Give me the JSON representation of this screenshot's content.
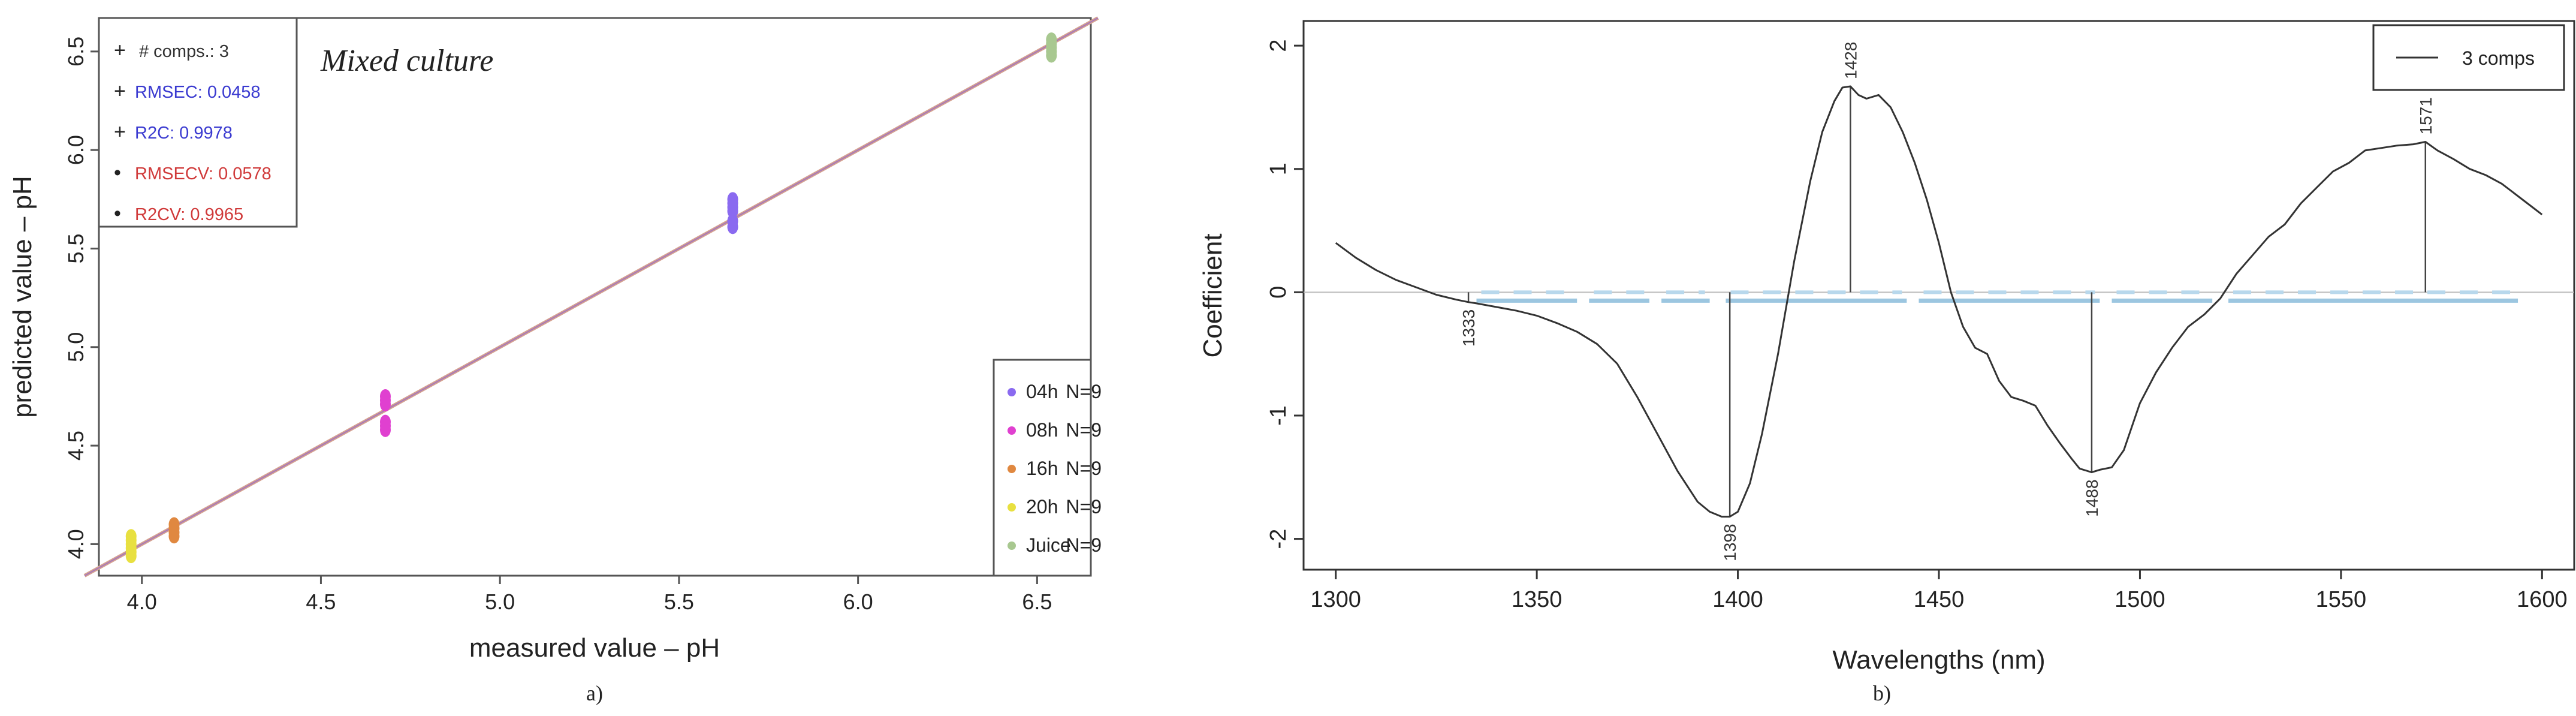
{
  "chart_data": [
    {
      "type": "scatter",
      "panel_label": "a)",
      "xlabel": "measured value – pH",
      "ylabel": "predicted value – pH",
      "xlim": [
        3.88,
        6.65
      ],
      "ylim": [
        3.84,
        6.67
      ],
      "xticks": [
        4.0,
        4.5,
        5.0,
        5.5,
        6.0,
        6.5
      ],
      "yticks": [
        4.0,
        4.5,
        5.0,
        5.5,
        6.0,
        6.5
      ],
      "xticklabels": [
        "4.0",
        "4.5",
        "5.0",
        "5.5",
        "6.0",
        "6.5"
      ],
      "yticklabels": [
        "4.0",
        "4.5",
        "5.0",
        "5.5",
        "6.0",
        "6.5"
      ],
      "annotation": "Mixed culture",
      "fit_line": {
        "x": [
          3.84,
          6.67
        ],
        "y": [
          3.84,
          6.67
        ],
        "colors": [
          "#d4a090",
          "#9b6fc4"
        ]
      },
      "stats_box": [
        {
          "marker": "+",
          "text": "# comps.: 3",
          "color": "#333333"
        },
        {
          "marker": "+",
          "text": "RMSEC: 0.0458",
          "color": "#3a3ad0"
        },
        {
          "marker": "+",
          "text": "R2C: 0.9978",
          "color": "#3a3ad0"
        },
        {
          "marker": "•",
          "text": "RMSECV: 0.0578",
          "color": "#d03a3a"
        },
        {
          "marker": "•",
          "text": "R2CV: 0.9965",
          "color": "#d03a3a"
        }
      ],
      "series": [
        {
          "name": "04h",
          "n_label": "N=9",
          "color": "#8a6af0",
          "x": [
            5.65,
            5.65,
            5.65,
            5.65,
            5.65,
            5.65
          ],
          "y": [
            5.75,
            5.73,
            5.71,
            5.69,
            5.64,
            5.61
          ]
        },
        {
          "name": "08h",
          "n_label": "N=9",
          "color": "#e040d0",
          "x": [
            4.68,
            4.68,
            4.68,
            4.68,
            4.68,
            4.68
          ],
          "y": [
            4.75,
            4.73,
            4.71,
            4.62,
            4.6,
            4.58
          ]
        },
        {
          "name": "16h",
          "n_label": "N=9",
          "color": "#e08840",
          "x": [
            4.09,
            4.09,
            4.09,
            4.09
          ],
          "y": [
            4.1,
            4.08,
            4.06,
            4.04
          ]
        },
        {
          "name": "20h",
          "n_label": "N=9",
          "color": "#e8e040",
          "x": [
            3.97,
            3.97,
            3.97,
            3.97,
            3.97,
            3.97
          ],
          "y": [
            4.04,
            4.02,
            4.0,
            3.98,
            3.96,
            3.94
          ]
        },
        {
          "name": "Juice",
          "n_label": "N=9",
          "color": "#a8c890",
          "x": [
            6.54,
            6.54,
            6.54,
            6.54,
            6.54
          ],
          "y": [
            6.56,
            6.54,
            6.52,
            6.5,
            6.48
          ]
        }
      ]
    },
    {
      "type": "line",
      "panel_label": "b)",
      "xlabel": "Wavelengths (nm)",
      "ylabel": "Coefficient",
      "xlim": [
        1292,
        1608
      ],
      "ylim": [
        -2.25,
        2.2
      ],
      "xticks": [
        1300,
        1350,
        1400,
        1450,
        1500,
        1550,
        1600
      ],
      "yticks": [
        -2,
        -1,
        0,
        1,
        2
      ],
      "xticklabels": [
        "1300",
        "1350",
        "1400",
        "1450",
        "1500",
        "1550",
        "1600"
      ],
      "yticklabels": [
        "-2",
        "-1",
        "0",
        "1",
        "2"
      ],
      "legend": {
        "label": "3 comps",
        "position": "top-right"
      },
      "series": [
        {
          "name": "3 comps",
          "color": "#333333",
          "x": [
            1300,
            1305,
            1310,
            1315,
            1320,
            1325,
            1330,
            1333,
            1335,
            1340,
            1345,
            1350,
            1355,
            1360,
            1365,
            1370,
            1375,
            1380,
            1385,
            1390,
            1393,
            1396,
            1398,
            1400,
            1403,
            1406,
            1410,
            1414,
            1418,
            1421,
            1424,
            1426,
            1428,
            1430,
            1432,
            1435,
            1438,
            1441,
            1444,
            1447,
            1450,
            1453,
            1456,
            1459,
            1462,
            1465,
            1468,
            1471,
            1474,
            1477,
            1480,
            1483,
            1485,
            1487,
            1488,
            1490,
            1493,
            1496,
            1500,
            1504,
            1508,
            1512,
            1516,
            1520,
            1524,
            1528,
            1532,
            1536,
            1540,
            1544,
            1548,
            1552,
            1556,
            1560,
            1564,
            1568,
            1571,
            1574,
            1578,
            1582,
            1586,
            1590,
            1594,
            1598,
            1600
          ],
          "y": [
            0.4,
            0.28,
            0.18,
            0.1,
            0.04,
            -0.02,
            -0.06,
            -0.08,
            -0.09,
            -0.12,
            -0.15,
            -0.19,
            -0.25,
            -0.32,
            -0.42,
            -0.58,
            -0.85,
            -1.15,
            -1.45,
            -1.7,
            -1.78,
            -1.82,
            -1.82,
            -1.78,
            -1.55,
            -1.15,
            -0.5,
            0.25,
            0.9,
            1.3,
            1.55,
            1.66,
            1.67,
            1.6,
            1.57,
            1.6,
            1.5,
            1.3,
            1.05,
            0.75,
            0.4,
            0.0,
            -0.28,
            -0.45,
            -0.5,
            -0.72,
            -0.85,
            -0.88,
            -0.92,
            -1.08,
            -1.22,
            -1.35,
            -1.43,
            -1.45,
            -1.46,
            -1.44,
            -1.42,
            -1.28,
            -0.9,
            -0.65,
            -0.45,
            -0.28,
            -0.18,
            -0.05,
            0.15,
            0.3,
            0.45,
            0.55,
            0.72,
            0.85,
            0.98,
            1.05,
            1.15,
            1.17,
            1.19,
            1.2,
            1.22,
            1.15,
            1.08,
            1.0,
            0.95,
            0.88,
            0.78,
            0.68,
            0.63
          ]
        }
      ],
      "peak_labels": [
        {
          "x": 1333,
          "y": -0.08,
          "label": "1333",
          "side": "below"
        },
        {
          "x": 1398,
          "y": -1.82,
          "label": "1398",
          "side": "below"
        },
        {
          "x": 1428,
          "y": 1.67,
          "label": "1428",
          "side": "above"
        },
        {
          "x": 1488,
          "y": -1.46,
          "label": "1488",
          "side": "below"
        },
        {
          "x": 1571,
          "y": 1.22,
          "label": "1571",
          "side": "above"
        }
      ],
      "band_segments": [
        {
          "x0": 1335,
          "x1": 1360
        },
        {
          "x0": 1363,
          "x1": 1378
        },
        {
          "x0": 1381,
          "x1": 1393
        },
        {
          "x0": 1397,
          "x1": 1442
        },
        {
          "x0": 1445,
          "x1": 1490
        },
        {
          "x0": 1493,
          "x1": 1518
        },
        {
          "x0": 1522,
          "x1": 1594
        }
      ]
    }
  ]
}
